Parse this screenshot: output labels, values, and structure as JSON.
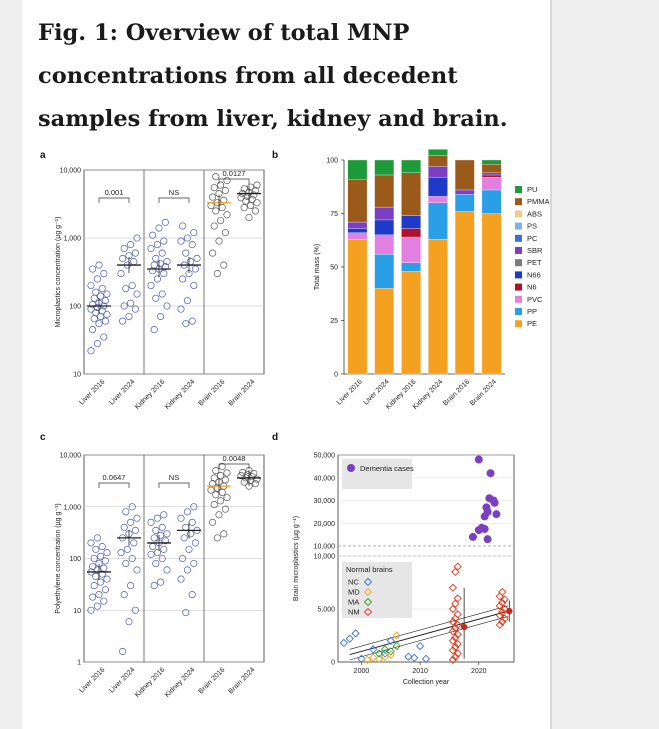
{
  "title": "Fig. 1: Overview of total MNP concentrations from all decedent samples from liver, kidney and brain.",
  "colors": {
    "orange": "#f4a020",
    "circle": "#4a5ba8",
    "purple": "#7b3fc4",
    "red": "#e03a1e",
    "green": "#2ea02e",
    "blue": "#3a6fd8",
    "median": "#222222"
  },
  "panel_labels": [
    "a",
    "b",
    "c",
    "d"
  ],
  "chart_data": [
    {
      "panel": "a",
      "type": "scatter",
      "ylabel": "Microplastics concentration (µg g⁻¹)",
      "yscale": "log",
      "ylim": [
        10,
        10000
      ],
      "yticks": [
        {
          "v": 10,
          "label": "10"
        },
        {
          "v": 100,
          "label": "100"
        },
        {
          "v": 1000,
          "label": "1,000"
        },
        {
          "v": 10000,
          "label": "10,000"
        }
      ],
      "categories": [
        "Liver 2016",
        "Liver 2024",
        "Kidney 2016",
        "Kidney 2024",
        "Brain 2016",
        "Brain 2024"
      ],
      "groups": [
        {
          "values": [
            22,
            28,
            35,
            45,
            55,
            60,
            65,
            70,
            75,
            80,
            85,
            90,
            95,
            100,
            105,
            110,
            120,
            130,
            140,
            150,
            160,
            180,
            200,
            250,
            300,
            350,
            400
          ],
          "median": 100
        },
        {
          "values": [
            60,
            70,
            90,
            100,
            110,
            150,
            180,
            200,
            300,
            400,
            450,
            500,
            550,
            600,
            700,
            800,
            1000
          ],
          "median": 400
        },
        {
          "values": [
            45,
            70,
            100,
            130,
            150,
            200,
            250,
            300,
            330,
            350,
            380,
            400,
            420,
            450,
            500,
            600,
            700,
            800,
            900,
            1100,
            1400,
            1700
          ],
          "median": 350
        },
        {
          "values": [
            55,
            60,
            90,
            120,
            200,
            250,
            300,
            350,
            400,
            450,
            500,
            600,
            800,
            900,
            1000,
            1200,
            1500
          ],
          "median": 400
        },
        {
          "values": [
            300,
            400,
            600,
            900,
            1200,
            1500,
            1800,
            2200,
            2500,
            2800,
            3000,
            3300,
            3600,
            4000,
            4500,
            5000,
            5500,
            6000,
            7000,
            8000
          ],
          "median": 3300
        },
        {
          "values": [
            2000,
            2500,
            2800,
            3000,
            3300,
            3500,
            3700,
            3900,
            4100,
            4300,
            4500,
            4700,
            5000,
            5300,
            5600,
            6000
          ],
          "median": 4500
        }
      ],
      "brackets": [
        {
          "from": 0,
          "to": 1,
          "label": "0.001"
        },
        {
          "from": 2,
          "to": 3,
          "label": "NS"
        },
        {
          "from": 4,
          "to": 5,
          "label": "0.0127"
        }
      ]
    },
    {
      "panel": "b",
      "type": "bar",
      "stacked": true,
      "ylabel": "Total mass (%)",
      "ylim": [
        0,
        100
      ],
      "yticks": [
        0,
        25,
        50,
        75,
        100
      ],
      "categories": [
        "Liver 2016",
        "Liver 2024",
        "Kidney 2016",
        "Kidney 2024",
        "Brain 2016",
        "Brain 2024"
      ],
      "series": [
        {
          "name": "PE",
          "color": "#f4a020",
          "values": [
            63,
            40,
            48,
            63,
            76,
            75
          ]
        },
        {
          "name": "PP",
          "color": "#2a9fe8",
          "values": [
            0,
            16,
            4,
            17,
            8,
            11
          ]
        },
        {
          "name": "PVC",
          "color": "#e37fe0",
          "values": [
            3,
            9,
            12,
            3,
            0,
            6
          ]
        },
        {
          "name": "N6",
          "color": "#b0122e",
          "values": [
            0,
            0,
            4,
            0,
            0,
            1
          ]
        },
        {
          "name": "N66",
          "color": "#1f3ac9",
          "values": [
            2,
            7,
            6,
            9,
            0,
            0
          ]
        },
        {
          "name": "PET",
          "color": "#7b7b7b",
          "values": [
            0,
            0,
            0,
            0,
            0,
            0
          ]
        },
        {
          "name": "SBR",
          "color": "#7b3fc4",
          "values": [
            3,
            6,
            0,
            5,
            2,
            1
          ]
        },
        {
          "name": "PC",
          "color": "#3c6ed6",
          "values": [
            0,
            0,
            0,
            0,
            0,
            0
          ]
        },
        {
          "name": "PS",
          "color": "#7fb3e6",
          "values": [
            0,
            0,
            0,
            0,
            0,
            0
          ]
        },
        {
          "name": "ABS",
          "color": "#f3c98a",
          "values": [
            0,
            0,
            0,
            0,
            0,
            0
          ]
        },
        {
          "name": "PMMA",
          "color": "#9a5a1a",
          "values": [
            20,
            15,
            20,
            5,
            14,
            4
          ]
        },
        {
          "name": "PU",
          "color": "#1f9a3a",
          "values": [
            9,
            7,
            6,
            3,
            0,
            2
          ]
        }
      ],
      "legend_order": [
        "PU",
        "PMMA",
        "ABS",
        "PS",
        "PC",
        "SBR",
        "PET",
        "N66",
        "N6",
        "PVC",
        "PP",
        "PE"
      ]
    },
    {
      "panel": "c",
      "type": "scatter",
      "ylabel": "Polyethylene concentration (µg g⁻¹)",
      "yscale": "log",
      "ylim": [
        1,
        10000
      ],
      "yticks": [
        {
          "v": 1,
          "label": "1"
        },
        {
          "v": 10,
          "label": "10"
        },
        {
          "v": 100,
          "label": "100"
        },
        {
          "v": 1000,
          "label": "1,000"
        },
        {
          "v": 10000,
          "label": "10,000"
        }
      ],
      "categories": [
        "Liver 2016",
        "Liver 2024",
        "Kidney 2016",
        "Kidney 2024",
        "Brain 2016",
        "Brain 2024"
      ],
      "groups": [
        {
          "values": [
            10,
            12,
            15,
            18,
            20,
            25,
            30,
            35,
            40,
            45,
            50,
            55,
            60,
            65,
            70,
            80,
            90,
            100,
            110,
            130,
            150,
            170,
            200,
            250
          ],
          "median": 55
        },
        {
          "values": [
            1.6,
            6,
            10,
            20,
            30,
            60,
            80,
            100,
            130,
            150,
            200,
            250,
            300,
            350,
            400,
            500,
            600,
            800,
            1000
          ],
          "median": 250
        },
        {
          "values": [
            30,
            35,
            60,
            80,
            100,
            120,
            130,
            150,
            170,
            200,
            220,
            250,
            280,
            300,
            350,
            400,
            500,
            600,
            700
          ],
          "median": 200
        },
        {
          "values": [
            9,
            20,
            40,
            60,
            80,
            100,
            150,
            200,
            250,
            300,
            350,
            400,
            500,
            600,
            800,
            1000
          ],
          "median": 350
        },
        {
          "values": [
            250,
            300,
            500,
            700,
            900,
            1100,
            1300,
            1500,
            1700,
            1900,
            2100,
            2300,
            2500,
            2800,
            3000,
            3300,
            3600,
            4000,
            4500,
            5000,
            6000
          ],
          "median": 2500
        },
        {
          "values": [
            2500,
            2800,
            3000,
            3200,
            3400,
            3600,
            3800,
            4000,
            4200,
            4400,
            4600,
            5000
          ],
          "median": 3600
        }
      ],
      "brackets": [
        {
          "from": 0,
          "to": 1,
          "label": "0.0647"
        },
        {
          "from": 2,
          "to": 3,
          "label": "NS"
        },
        {
          "from": 4,
          "to": 5,
          "label": "0.0048"
        }
      ]
    },
    {
      "panel": "d",
      "type": "scatter",
      "ylabel": "Brain microplastics (µg g⁻¹)",
      "xlabel": "Collection year",
      "xlim": [
        1996,
        2026
      ],
      "xticks": [
        2000,
        2010,
        2020
      ],
      "ylower": {
        "range": [
          0,
          10000
        ],
        "ticks": [
          {
            "v": 0,
            "label": "0"
          },
          {
            "v": 5000,
            "label": "5,000"
          },
          {
            "v": 10000,
            "label": "10,000"
          }
        ]
      },
      "yupper": {
        "range": [
          10000,
          50000
        ],
        "ticks": [
          {
            "v": 10000,
            "label": "10,000"
          },
          {
            "v": 20000,
            "label": "20,000"
          },
          {
            "v": 30000,
            "label": "30,000"
          },
          {
            "v": 40000,
            "label": "40,000"
          },
          {
            "v": 50000,
            "label": "50,000"
          }
        ]
      },
      "dementia": {
        "label": "Dementia cases",
        "color": "#7b3fc4",
        "points": [
          [
            2019,
            14000
          ],
          [
            2020,
            17000
          ],
          [
            2020.5,
            18000
          ],
          [
            2021,
            17500
          ],
          [
            2021,
            23000
          ],
          [
            2021.5,
            25000
          ],
          [
            2021.3,
            27000
          ],
          [
            2021.8,
            31000
          ],
          [
            2022,
            42000
          ],
          [
            2022.5,
            30000
          ],
          [
            2022.7,
            29000
          ],
          [
            2023,
            24000
          ],
          [
            2021.5,
            13000
          ],
          [
            2020,
            48000
          ]
        ]
      },
      "normal_legend_title": "Normal brains",
      "normal_groups": [
        {
          "label": "NC",
          "color": "#3a6fd8",
          "points": [
            [
              1997,
              1800
            ],
            [
              1998,
              2200
            ],
            [
              1999,
              2700
            ],
            [
              2000,
              300
            ],
            [
              2002,
              1200
            ],
            [
              2004,
              800
            ],
            [
              2005,
              2000
            ],
            [
              2008,
              500
            ],
            [
              2009,
              400
            ],
            [
              2010,
              1500
            ],
            [
              2011,
              300
            ]
          ]
        },
        {
          "label": "MD",
          "color": "#f4a020",
          "points": [
            [
              2001,
              200
            ],
            [
              2002,
              400
            ],
            [
              2003,
              300
            ],
            [
              2004,
              500
            ],
            [
              2005,
              700
            ],
            [
              2006,
              2500
            ]
          ]
        },
        {
          "label": "MA",
          "color": "#2ea02e",
          "points": [
            [
              2003,
              800
            ],
            [
              2004,
              1200
            ],
            [
              2005,
              1000
            ],
            [
              2006,
              1500
            ]
          ]
        },
        {
          "label": "NM",
          "color": "#e03a1e",
          "points": [
            [
              2016,
              200
            ],
            [
              2016,
              500
            ],
            [
              2016,
              800
            ],
            [
              2016,
              1100
            ],
            [
              2016,
              1400
            ],
            [
              2016,
              1700
            ],
            [
              2016,
              2000
            ],
            [
              2016,
              2300
            ],
            [
              2016,
              2600
            ],
            [
              2016,
              2900
            ],
            [
              2016,
              3200
            ],
            [
              2016,
              3500
            ],
            [
              2016,
              3800
            ],
            [
              2016,
              4100
            ],
            [
              2016,
              4500
            ],
            [
              2016,
              5000
            ],
            [
              2016,
              5500
            ],
            [
              2016,
              6000
            ],
            [
              2016,
              7000
            ],
            [
              2016,
              8500
            ],
            [
              2016,
              9000
            ],
            [
              2024,
              3500
            ],
            [
              2024,
              3800
            ],
            [
              2024,
              4100
            ],
            [
              2024,
              4400
            ],
            [
              2024,
              4700
            ],
            [
              2024,
              5000
            ],
            [
              2024,
              5300
            ],
            [
              2024,
              5600
            ],
            [
              2024,
              5900
            ],
            [
              2024,
              6200
            ],
            [
              2024,
              6600
            ]
          ]
        }
      ],
      "means": [
        {
          "x": 2017.5,
          "y": 3300,
          "err": [
            300,
            7000
          ]
        },
        {
          "x": 2025.2,
          "y": 4800,
          "err": [
            3800,
            5800
          ]
        }
      ],
      "trend": {
        "from": [
          1998,
          700
        ],
        "to": [
          2025,
          4800
        ]
      }
    }
  ]
}
